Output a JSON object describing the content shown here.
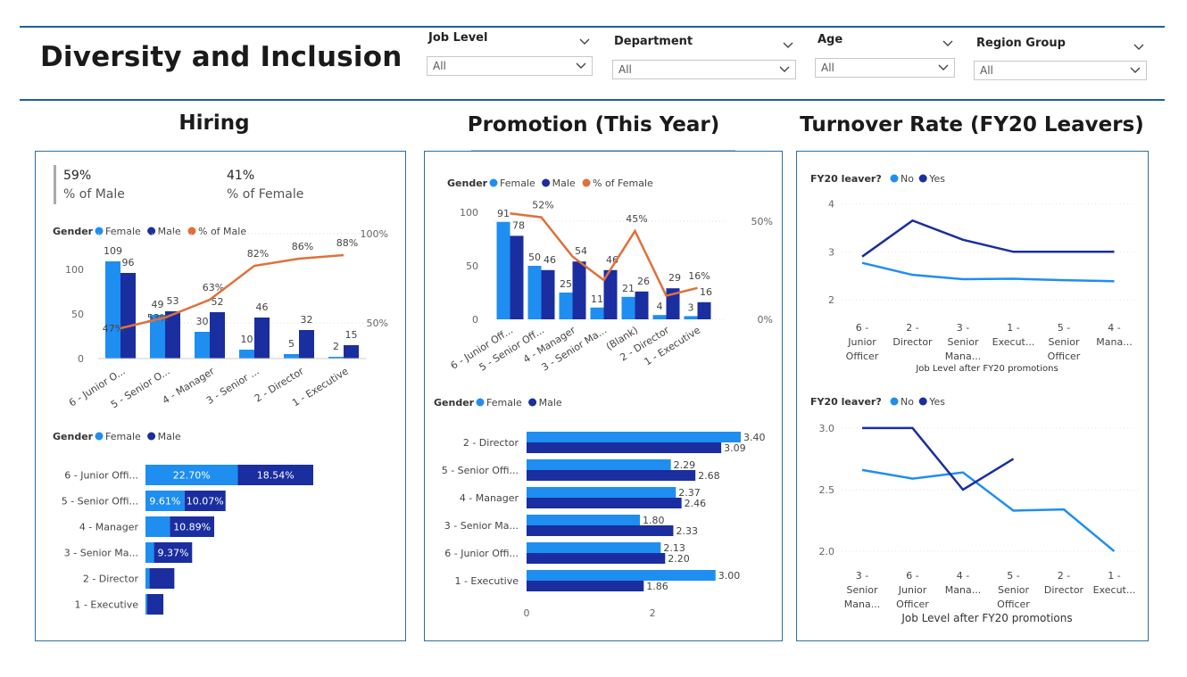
{
  "page": {
    "title": "Diversity and Inclusion"
  },
  "colors": {
    "female": "#1f8ef1",
    "male": "#1a2ea0",
    "pct": "#e0703a",
    "border": "#2e6da4"
  },
  "slicers": [
    {
      "label": "Job Level",
      "value": "All"
    },
    {
      "label": "Department",
      "value": "All"
    },
    {
      "label": "Age",
      "value": "All"
    },
    {
      "label": "Region Group",
      "value": "All"
    }
  ],
  "sections": {
    "hiring": "Hiring",
    "promotion": "Promotion (This Year)",
    "turnover": "Turnover Rate (FY20 Leavers)"
  },
  "kpi": {
    "male_value": "59%",
    "male_label": "% of Male",
    "female_value": "41%",
    "female_label": "% of Female"
  },
  "legends": {
    "gender": "Gender",
    "female": "Female",
    "male": "Male",
    "pct_male": "% of Male",
    "pct_female": "% of Female",
    "fy20": "FY20 leaver?",
    "no": "No",
    "yes": "Yes"
  },
  "chart_data": [
    {
      "id": "hiring_combo",
      "type": "bar",
      "categories": [
        "6 - Junior O...",
        "5 - Senior O...",
        "4 - Manager",
        "3 - Senior ...",
        "2 - Director",
        "1 - Executive"
      ],
      "series": [
        {
          "name": "Female",
          "values": [
            109,
            49,
            30,
            10,
            5,
            2
          ]
        },
        {
          "name": "Male",
          "values": [
            96,
            53,
            52,
            46,
            32,
            15
          ]
        },
        {
          "name": "% of Male",
          "values": [
            47,
            53,
            63,
            82,
            86,
            88
          ],
          "line": true
        }
      ],
      "ylim": [
        0,
        120
      ],
      "y_ticks": [
        0,
        50,
        100
      ],
      "y2_ticks": [
        "50%",
        "100%"
      ],
      "y2lim": [
        40,
        100
      ]
    },
    {
      "id": "hiring_stacked",
      "type": "bar",
      "orientation": "horizontal-stacked",
      "categories": [
        "6 - Junior Offi...",
        "5 - Senior Offi...",
        "4 - Manager",
        "3 - Senior Ma...",
        "2 - Director",
        "1 - Executive"
      ],
      "series": [
        {
          "name": "Female",
          "values": [
            22.7,
            9.61,
            6.0,
            2.1,
            1.0,
            0.4
          ],
          "labels": [
            "22.70%",
            "9.61%",
            "",
            "",
            "",
            ""
          ]
        },
        {
          "name": "Male",
          "values": [
            18.54,
            10.07,
            10.89,
            9.37,
            6.1,
            4.0
          ],
          "labels": [
            "18.54%",
            "10.07%",
            "10.89%",
            "9.37%",
            "",
            ""
          ]
        }
      ]
    },
    {
      "id": "promotion_combo",
      "type": "bar",
      "categories": [
        "6 - Junior Off...",
        "5 - Senior Off...",
        "4 - Manager",
        "3 - Senior Ma...",
        "(Blank)",
        "2 - Director",
        "1 - Executive"
      ],
      "series": [
        {
          "name": "Female",
          "values": [
            91,
            50,
            25,
            11,
            21,
            4,
            3
          ]
        },
        {
          "name": "Male",
          "values": [
            78,
            46,
            54,
            46,
            26,
            29,
            16
          ]
        },
        {
          "name": "% of Female",
          "values": [
            54,
            52,
            32,
            20,
            45,
            12,
            16
          ],
          "line": true
        }
      ],
      "ylim": [
        0,
        110
      ],
      "y_ticks": [
        0,
        50,
        100
      ],
      "y2_ticks": [
        "0%",
        "50%"
      ],
      "y2lim": [
        0,
        60
      ],
      "line_labels": [
        {
          "index": 1,
          "text": "52%"
        },
        {
          "index": 4,
          "text": "45%"
        },
        {
          "index": 6,
          "text": "16%"
        }
      ]
    },
    {
      "id": "promotion_hbar",
      "type": "bar",
      "orientation": "horizontal",
      "categories": [
        "2 - Director",
        "5 - Senior Offi...",
        "4 - Manager",
        "3 - Senior Ma...",
        "6 - Junior Offi...",
        "1 - Executive"
      ],
      "series": [
        {
          "name": "Female",
          "values": [
            3.4,
            2.29,
            2.37,
            1.8,
            2.13,
            3.0
          ]
        },
        {
          "name": "Male",
          "values": [
            3.09,
            2.68,
            2.46,
            2.33,
            2.2,
            1.86
          ]
        }
      ],
      "xlim": [
        0,
        3.5
      ],
      "x_ticks": [
        0,
        2
      ]
    },
    {
      "id": "turnover_line_1",
      "type": "line",
      "categories": [
        [
          "6 -",
          "Junior",
          "Officer"
        ],
        [
          "2 -",
          "Director"
        ],
        [
          "3 -",
          "Senior",
          "Mana..."
        ],
        [
          "1 -",
          "Execut..."
        ],
        [
          "5 -",
          "Senior",
          "Officer"
        ],
        [
          "4 -",
          "Mana..."
        ]
      ],
      "series": [
        {
          "name": "No",
          "values": [
            2.77,
            2.52,
            2.43,
            2.44,
            2.41,
            2.39
          ]
        },
        {
          "name": "Yes",
          "values": [
            2.9,
            3.65,
            3.25,
            3.0,
            3.0,
            3.0
          ]
        }
      ],
      "ylim": [
        1.8,
        4.1
      ],
      "y_ticks": [
        2,
        3,
        4
      ],
      "xlabel": "Job Level after FY20 promotions"
    },
    {
      "id": "turnover_line_2",
      "type": "line",
      "categories": [
        [
          "3 -",
          "Senior",
          "Mana..."
        ],
        [
          "6 -",
          "Junior",
          "Officer"
        ],
        [
          "4 -",
          "Mana..."
        ],
        [
          "5 -",
          "Senior",
          "Officer"
        ],
        [
          "2 -",
          "Director"
        ],
        [
          "1 -",
          "Execut..."
        ]
      ],
      "series": [
        {
          "name": "No",
          "values": [
            2.66,
            2.59,
            2.64,
            2.33,
            2.34,
            2.0
          ]
        },
        {
          "name": "Yes",
          "values": [
            3.0,
            3.0,
            2.5,
            2.75,
            null,
            null
          ]
        }
      ],
      "ylim": [
        1.95,
        3.05
      ],
      "y_ticks": [
        2.0,
        2.5,
        3.0
      ],
      "y_tick_labels": [
        "2.0",
        "2.5",
        "3.0"
      ],
      "xlabel": "Job Level after FY20 promotions"
    }
  ]
}
